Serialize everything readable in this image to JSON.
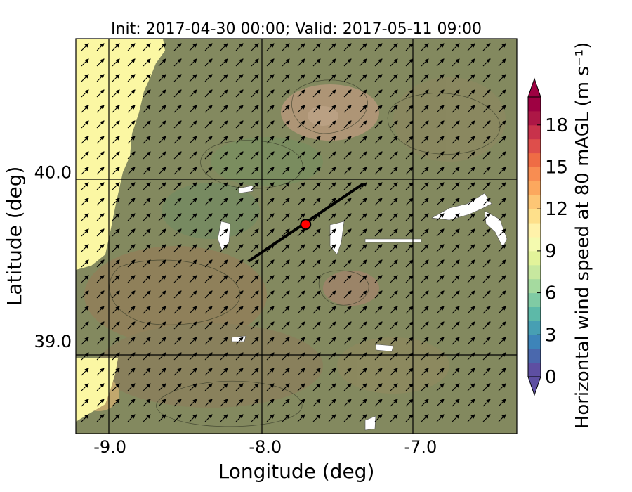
{
  "chart_data": {
    "type": "heatmap",
    "title": "Init: 2017-04-30 00:00; Valid: 2017-05-11 09:00",
    "xlabel": "Longitude (deg)",
    "ylabel": "Latitude (deg)",
    "xlim": [
      -9.22,
      -6.38
    ],
    "ylim": [
      38.45,
      40.79
    ],
    "x_ticks": [
      {
        "value": -9.0,
        "label": "-9.0"
      },
      {
        "value": -8.0,
        "label": "-8.0"
      },
      {
        "value": -7.0,
        "label": "-7.0"
      }
    ],
    "y_ticks": [
      {
        "value": 40.0,
        "label": "40.0"
      },
      {
        "value": 39.0,
        "label": "39.0"
      }
    ],
    "grid": true,
    "colorbar": {
      "label": "Horizontal wind speed at 80 mAGL (m s⁻¹)",
      "min": 0,
      "max": 20,
      "extend": "both",
      "tick_values": [
        0,
        3,
        6,
        9,
        12,
        15,
        18
      ],
      "tick_labels": [
        "0",
        "3",
        "6",
        "9",
        "12",
        "15",
        "18"
      ],
      "colors": [
        "#5e4fa2",
        "#4a68ad",
        "#3d84b9",
        "#479fb3",
        "#5db9a8",
        "#80cba4",
        "#a5da9f",
        "#c7e89f",
        "#e2f39a",
        "#f4faaf",
        "#fff2aa",
        "#fee08b",
        "#fdc675",
        "#fca85e",
        "#f88d52",
        "#ef6c45",
        "#de4e4b",
        "#c8324b",
        "#ad1746",
        "#9e0142"
      ],
      "under_color": "#5e4fa2",
      "over_color": "#9e0142"
    },
    "cross_section": {
      "start": {
        "lon": -8.11,
        "lat": 39.47
      },
      "end": {
        "lon": -7.37,
        "lat": 39.93
      }
    },
    "point": {
      "lon": -7.74,
      "lat": 39.69,
      "color": "#ff0000"
    },
    "wind_direction": "southwest-to-northeast",
    "colors": {
      "land_background": "#83895f",
      "ocean_calm": "#fbf7a3",
      "vector": "#000000",
      "grid": "#000000"
    }
  }
}
